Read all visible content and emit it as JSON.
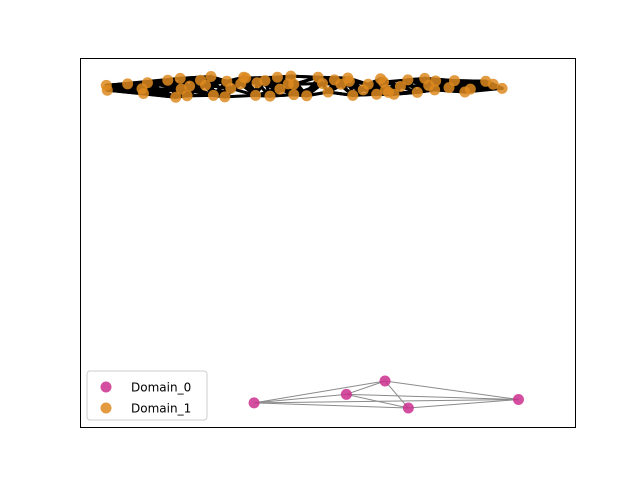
{
  "chart_data": {
    "type": "scatter",
    "title": "",
    "xlabel": "",
    "ylabel": "",
    "axes_ticks": false,
    "grid": false,
    "xlim": [
      0,
      100
    ],
    "ylim": [
      0,
      100
    ],
    "legend": {
      "placement": "lower-left",
      "entries": [
        "Domain_0",
        "Domain_1"
      ]
    },
    "series": [
      {
        "name": "Domain_0",
        "color": "#cc2f8f",
        "points": [
          {
            "x": 35.1,
            "y": 6.8
          },
          {
            "x": 53.7,
            "y": 9.1
          },
          {
            "x": 61.5,
            "y": 12.7
          },
          {
            "x": 66.2,
            "y": 5.4
          },
          {
            "x": 88.4,
            "y": 7.7
          }
        ],
        "edges": [
          [
            0,
            1
          ],
          [
            0,
            2
          ],
          [
            0,
            3
          ],
          [
            0,
            4
          ],
          [
            1,
            2
          ],
          [
            1,
            3
          ],
          [
            1,
            4
          ],
          [
            2,
            3
          ],
          [
            2,
            4
          ],
          [
            3,
            4
          ]
        ],
        "edge_color": "#8a8a8a"
      },
      {
        "name": "Domain_1",
        "color": "#dd8a1e",
        "edge_color": "#000000",
        "points": [
          {
            "x": 5.3,
            "y": 92.6
          },
          {
            "x": 5.5,
            "y": 91.3
          },
          {
            "x": 9.6,
            "y": 93.0
          },
          {
            "x": 12.5,
            "y": 91.7
          },
          {
            "x": 12.8,
            "y": 90.4
          },
          {
            "x": 13.6,
            "y": 93.3
          },
          {
            "x": 17.7,
            "y": 94.0
          },
          {
            "x": 19.3,
            "y": 89.4
          },
          {
            "x": 20.4,
            "y": 91.6
          },
          {
            "x": 20.2,
            "y": 94.5
          },
          {
            "x": 21.6,
            "y": 89.8
          },
          {
            "x": 22.1,
            "y": 92.4
          },
          {
            "x": 24.3,
            "y": 94.0
          },
          {
            "x": 25.3,
            "y": 92.6
          },
          {
            "x": 26.4,
            "y": 95.0
          },
          {
            "x": 26.9,
            "y": 89.9
          },
          {
            "x": 29.2,
            "y": 89.5
          },
          {
            "x": 29.6,
            "y": 93.7
          },
          {
            "x": 30.4,
            "y": 91.8
          },
          {
            "x": 32.4,
            "y": 93.0
          },
          {
            "x": 33.4,
            "y": 94.6
          },
          {
            "x": 33.0,
            "y": 94.8
          },
          {
            "x": 35.4,
            "y": 89.9
          },
          {
            "x": 35.7,
            "y": 93.3
          },
          {
            "x": 37.3,
            "y": 93.9
          },
          {
            "x": 38.3,
            "y": 89.7
          },
          {
            "x": 39.8,
            "y": 94.8
          },
          {
            "x": 40.3,
            "y": 91.6
          },
          {
            "x": 42.0,
            "y": 93.0
          },
          {
            "x": 42.5,
            "y": 95.1
          },
          {
            "x": 43.1,
            "y": 92.9
          },
          {
            "x": 43.1,
            "y": 90.1
          },
          {
            "x": 45.7,
            "y": 89.8
          },
          {
            "x": 48.0,
            "y": 94.8
          },
          {
            "x": 48.9,
            "y": 93.1
          },
          {
            "x": 50.0,
            "y": 90.8
          },
          {
            "x": 51.3,
            "y": 94.1
          },
          {
            "x": 52.6,
            "y": 92.9
          },
          {
            "x": 54.0,
            "y": 94.6
          },
          {
            "x": 54.3,
            "y": 93.7
          },
          {
            "x": 55.0,
            "y": 89.9
          },
          {
            "x": 57.1,
            "y": 91.4
          },
          {
            "x": 58.1,
            "y": 92.9
          },
          {
            "x": 59.8,
            "y": 90.2
          },
          {
            "x": 60.6,
            "y": 94.4
          },
          {
            "x": 61.2,
            "y": 93.5
          },
          {
            "x": 61.6,
            "y": 91.4
          },
          {
            "x": 62.2,
            "y": 90.7
          },
          {
            "x": 63.3,
            "y": 90.2
          },
          {
            "x": 64.6,
            "y": 92.3
          },
          {
            "x": 66.1,
            "y": 94.1
          },
          {
            "x": 68.0,
            "y": 90.7
          },
          {
            "x": 69.5,
            "y": 94.5
          },
          {
            "x": 70.3,
            "y": 92.6
          },
          {
            "x": 71.7,
            "y": 93.8
          },
          {
            "x": 71.5,
            "y": 91.4
          },
          {
            "x": 74.4,
            "y": 92.0
          },
          {
            "x": 75.5,
            "y": 93.9
          },
          {
            "x": 77.6,
            "y": 90.8
          },
          {
            "x": 78.7,
            "y": 91.6
          },
          {
            "x": 81.8,
            "y": 93.7
          },
          {
            "x": 83.3,
            "y": 92.9
          },
          {
            "x": 85.1,
            "y": 91.8
          }
        ]
      }
    ]
  }
}
